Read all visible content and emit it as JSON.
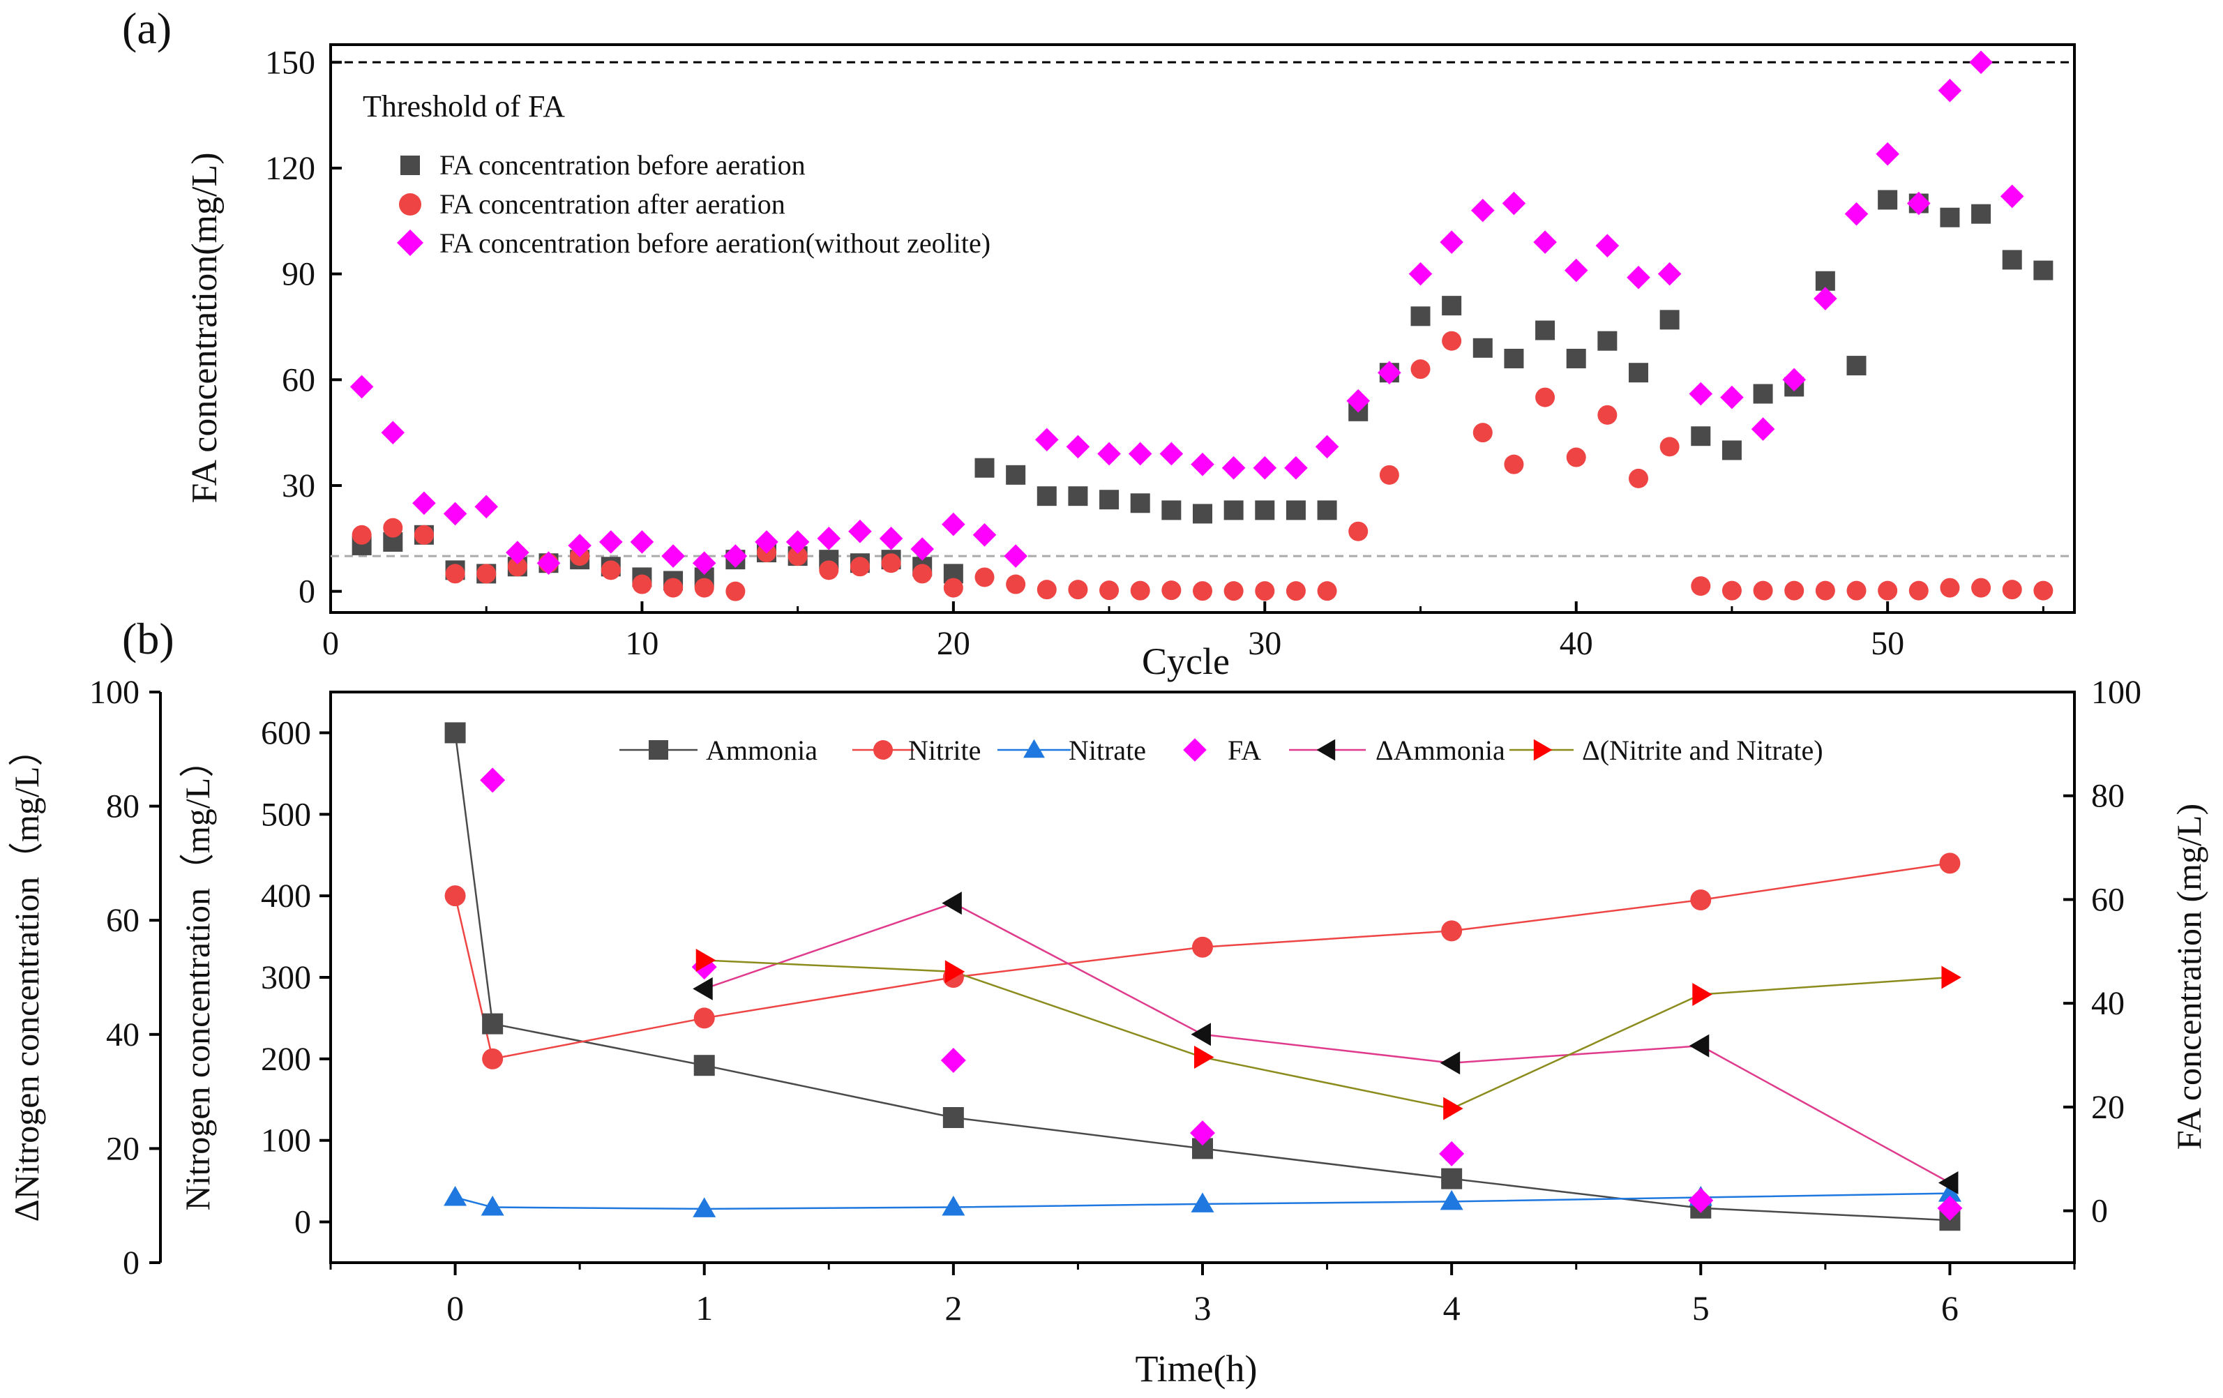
{
  "chart_data": [
    {
      "type": "scatter",
      "panel_label": "(a)",
      "xlabel": "Cycle",
      "ylabel": "FA concentration(mg/L)",
      "xlim": [
        0,
        56
      ],
      "ylim": [
        -6,
        155
      ],
      "xticks": [
        0,
        10,
        20,
        30,
        40,
        50
      ],
      "yticks": [
        0,
        30,
        60,
        90,
        120,
        150
      ],
      "threshold_label": "Threshold of FA",
      "reference_lines": [
        {
          "y": 150,
          "style": "dashed",
          "color": "#000000"
        },
        {
          "y": 10,
          "style": "dashed",
          "color": "#aaaaaa"
        }
      ],
      "series": [
        {
          "name": "FA concentration before aeration",
          "marker": "square",
          "color": "#4a4a4a",
          "x": [
            1,
            2,
            3,
            4,
            5,
            6,
            7,
            8,
            9,
            10,
            11,
            12,
            13,
            14,
            15,
            16,
            17,
            18,
            19,
            20,
            21,
            22,
            23,
            24,
            25,
            26,
            27,
            28,
            29,
            30,
            31,
            32,
            33,
            34,
            35,
            36,
            37,
            38,
            39,
            40,
            41,
            42,
            43,
            44,
            45,
            46,
            47,
            48,
            49,
            50,
            51,
            52,
            53,
            54,
            55
          ],
          "y": [
            13,
            14,
            16,
            6,
            5,
            7,
            8,
            9,
            7,
            4,
            3,
            4,
            9,
            11,
            10,
            9,
            8,
            9,
            7,
            5,
            35,
            33,
            27,
            27,
            26,
            25,
            23,
            22,
            23,
            23,
            23,
            23,
            51,
            62,
            78,
            81,
            69,
            66,
            74,
            66,
            71,
            62,
            77,
            44,
            40,
            56,
            58,
            88,
            64,
            111,
            110,
            106,
            107,
            94,
            91
          ]
        },
        {
          "name": "FA concentration after aeration",
          "marker": "circle",
          "color": "#ee4444",
          "x": [
            1,
            2,
            3,
            4,
            5,
            6,
            7,
            8,
            9,
            10,
            11,
            12,
            13,
            14,
            15,
            16,
            17,
            18,
            19,
            20,
            21,
            22,
            23,
            24,
            25,
            26,
            27,
            28,
            29,
            30,
            31,
            32,
            33,
            34,
            35,
            36,
            37,
            38,
            39,
            40,
            41,
            42,
            43,
            44,
            45,
            46,
            47,
            48,
            49,
            50,
            51,
            52,
            53,
            54,
            55
          ],
          "y": [
            16,
            18,
            16,
            5,
            5,
            7,
            8,
            10,
            6,
            2,
            1,
            1,
            0,
            11,
            10,
            6,
            7,
            8,
            5,
            1,
            4,
            2,
            0.5,
            0.5,
            0.3,
            0.2,
            0.3,
            0.1,
            0.1,
            0.1,
            0.1,
            0.1,
            17,
            33,
            63,
            71,
            45,
            36,
            55,
            38,
            50,
            32,
            41,
            1.5,
            0.2,
            0.2,
            0.2,
            0.2,
            0.2,
            0.2,
            0.2,
            1,
            1,
            0.5,
            0.2
          ]
        },
        {
          "name": "FA concentration before aeration(without zeolite)",
          "marker": "diamond",
          "color": "#ff00ff",
          "x": [
            1,
            2,
            3,
            4,
            5,
            6,
            7,
            8,
            9,
            10,
            11,
            12,
            13,
            14,
            15,
            16,
            17,
            18,
            19,
            20,
            21,
            22,
            23,
            24,
            25,
            26,
            27,
            28,
            29,
            30,
            31,
            32,
            33,
            34,
            35,
            36,
            37,
            38,
            39,
            40,
            41,
            42,
            43,
            44,
            45,
            46,
            47,
            48,
            49,
            50,
            51,
            52,
            53,
            54
          ],
          "y": [
            58,
            45,
            25,
            22,
            24,
            11,
            8,
            13,
            14,
            14,
            10,
            8,
            10,
            14,
            14,
            15,
            17,
            15,
            12,
            19,
            16,
            10,
            43,
            41,
            39,
            39,
            39,
            36,
            35,
            35,
            35,
            41,
            54,
            62,
            90,
            99,
            108,
            110,
            99,
            91,
            98,
            89,
            90,
            56,
            55,
            46,
            60,
            83,
            107,
            124,
            110,
            142,
            150,
            112
          ]
        }
      ]
    },
    {
      "type": "line",
      "panel_label": "(b)",
      "xlabel": "Time(h)",
      "ylabel_left_outer": "ΔNitrogen concentration（mg/L）",
      "ylabel_left": "Nitrogen concentration（mg/L）",
      "ylabel_right": "FA concentration (mg/L)",
      "xlim": [
        -0.5,
        6.5
      ],
      "xticks": [
        0,
        1,
        2,
        3,
        4,
        5,
        6
      ],
      "ylim_left": [
        -50,
        650
      ],
      "yticks_left": [
        0,
        100,
        200,
        300,
        400,
        500,
        600
      ],
      "ylim_left_outer": [
        0,
        100
      ],
      "yticks_left_outer": [
        0,
        20,
        40,
        60,
        80,
        100
      ],
      "ylim_right": [
        -10,
        100
      ],
      "yticks_right": [
        0,
        20,
        40,
        60,
        80,
        100
      ],
      "series": [
        {
          "name": "Ammonia",
          "axis": "left",
          "marker": "square",
          "color": "#4a4a4a",
          "line": true,
          "x": [
            0,
            0.15,
            1,
            2,
            3,
            4,
            5,
            6
          ],
          "y": [
            600,
            243,
            192,
            128,
            90,
            53,
            17,
            2
          ]
        },
        {
          "name": "Nitrite",
          "axis": "left",
          "marker": "circle",
          "color": "#ee4444",
          "line": true,
          "x": [
            0,
            0.15,
            1,
            2,
            3,
            4,
            5,
            6
          ],
          "y": [
            400,
            200,
            250,
            300,
            337,
            357,
            395,
            440
          ]
        },
        {
          "name": "Nitrate",
          "axis": "left",
          "marker": "triangle-up",
          "color": "#1e78e0",
          "line": true,
          "x": [
            0,
            0.15,
            1,
            2,
            3,
            4,
            5,
            6
          ],
          "y": [
            30,
            18,
            16,
            18,
            22,
            25,
            30,
            35
          ]
        },
        {
          "name": "FA",
          "axis": "right",
          "marker": "diamond",
          "color": "#ff00ff",
          "line": false,
          "x": [
            0.15,
            1,
            2,
            3,
            4,
            5,
            6
          ],
          "y": [
            83,
            47,
            29,
            15,
            11,
            2,
            0.5
          ]
        },
        {
          "name": "ΔAmmonia",
          "axis": "left_outer",
          "marker": "triangle-left",
          "color": "#111111",
          "line": true,
          "line_color": "#e03a8c",
          "x": [
            1,
            2,
            3,
            4,
            5,
            6
          ],
          "y": [
            48,
            63,
            40,
            35,
            38,
            14
          ]
        },
        {
          "name": "Δ(Nitrite and Nitrate)",
          "axis": "left_outer",
          "marker": "triangle-right",
          "color": "#ff0000",
          "line": true,
          "line_color": "#8b8b1e",
          "x": [
            1,
            2,
            3,
            4,
            5,
            6
          ],
          "y": [
            53,
            51,
            36,
            27,
            47,
            50
          ]
        }
      ]
    }
  ]
}
